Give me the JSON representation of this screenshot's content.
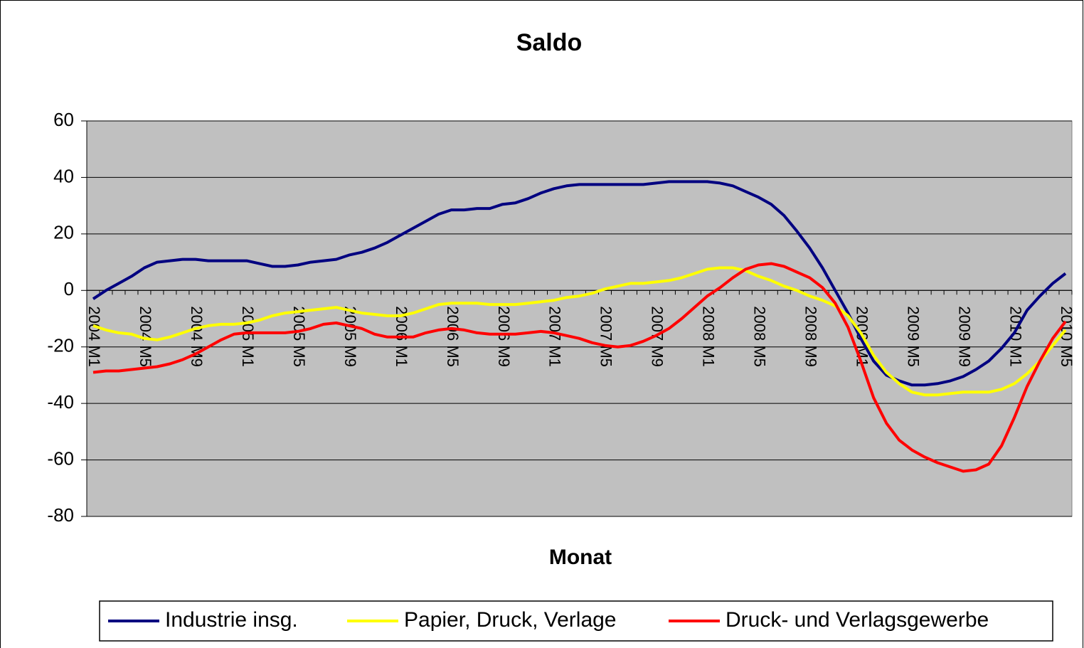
{
  "chart_data": {
    "type": "line",
    "title": "Saldo",
    "x_label": "Monat",
    "categories": [
      "2004 M1",
      null,
      null,
      null,
      "2004 M5",
      null,
      null,
      null,
      "2004 M9",
      null,
      null,
      null,
      "2005 M1",
      null,
      null,
      null,
      "2005 M5",
      null,
      null,
      null,
      "2005 M9",
      null,
      null,
      null,
      "2006 M1",
      null,
      null,
      null,
      "2006 M5",
      null,
      null,
      null,
      "2006 M9",
      null,
      null,
      null,
      "2007 M1",
      null,
      null,
      null,
      "2007 M5",
      null,
      null,
      null,
      "2007 M9",
      null,
      null,
      null,
      "2008 M1",
      null,
      null,
      null,
      "2008 M5",
      null,
      null,
      null,
      "2008 M9",
      null,
      null,
      null,
      "2009 M1",
      null,
      null,
      null,
      "2009 M5",
      null,
      null,
      null,
      "2009 M9",
      null,
      null,
      null,
      "2010 M1",
      null,
      null,
      null,
      "2010 M5"
    ],
    "series": [
      {
        "name": "Industrie insg.",
        "color": "#000080",
        "values": [
          -3,
          0,
          2.5,
          5,
          8,
          10,
          10.5,
          11,
          11,
          10.5,
          10.5,
          10.5,
          10.5,
          9.5,
          8.5,
          8.5,
          9,
          10,
          10.5,
          11,
          12.5,
          13.5,
          15,
          17,
          19.5,
          22,
          24.5,
          27,
          28.5,
          28.5,
          29,
          29,
          30.5,
          31,
          32.5,
          34.5,
          36,
          37,
          37.5,
          37.5,
          37.5,
          37.5,
          37.5,
          37.5,
          38,
          38.5,
          38.5,
          38.5,
          38.5,
          38,
          37,
          35,
          33,
          30.5,
          26.5,
          21,
          15,
          8,
          0,
          -8,
          -17,
          -25,
          -30,
          -32,
          -33.5,
          -33.5,
          -33,
          -32,
          -30.5,
          -28,
          -25,
          -20.5,
          -15,
          -7,
          -2,
          2.5,
          6
        ]
      },
      {
        "name": "Papier, Druck, Verlage",
        "color": "#ffff00",
        "values": [
          -12.5,
          -14,
          -15,
          -15.5,
          -17,
          -17.5,
          -16.5,
          -15,
          -13.5,
          -12.5,
          -12,
          -12,
          -11.5,
          -10.5,
          -9,
          -8,
          -7.5,
          -7,
          -6.5,
          -6,
          -7,
          -8,
          -8.5,
          -9,
          -9,
          -8,
          -6.5,
          -5,
          -4.5,
          -4.5,
          -4.5,
          -5,
          -5,
          -5,
          -4.5,
          -4,
          -3.5,
          -2.5,
          -2,
          -1,
          0.5,
          1.5,
          2.5,
          2.5,
          3,
          3.5,
          4.5,
          6,
          7.5,
          8,
          8,
          7,
          5,
          3.5,
          1.5,
          0,
          -2,
          -3.5,
          -5.5,
          -9,
          -15,
          -23,
          -29,
          -33,
          -36,
          -37,
          -37,
          -36.5,
          -36,
          -36,
          -36,
          -35,
          -33,
          -29.5,
          -25,
          -19.5,
          -14
        ]
      },
      {
        "name": "Druck- und Verlagsgewerbe",
        "color": "#ff0000",
        "values": [
          -29,
          -28.5,
          -28.5,
          -28,
          -27.5,
          -27,
          -26,
          -24.5,
          -22.5,
          -20,
          -17.5,
          -15.5,
          -15,
          -15,
          -15,
          -15,
          -14.5,
          -13.5,
          -12,
          -11.5,
          -12.5,
          -13.5,
          -15.5,
          -16.5,
          -16.5,
          -16.5,
          -15,
          -14,
          -13.5,
          -14,
          -15,
          -15.5,
          -15.5,
          -15.5,
          -15,
          -14.5,
          -15,
          -16,
          -17,
          -18.5,
          -19.5,
          -20,
          -19.5,
          -18,
          -16,
          -13.5,
          -10,
          -6,
          -2,
          1,
          4.5,
          7.5,
          9,
          9.5,
          8.5,
          6.5,
          4.5,
          1,
          -4.5,
          -13,
          -25,
          -38,
          -47,
          -53,
          -56.5,
          -59,
          -61,
          -62.5,
          -64,
          -63.5,
          -61.5,
          -55,
          -45,
          -34,
          -25,
          -17,
          -11
        ]
      }
    ],
    "ylim": [
      -80,
      60
    ],
    "yticks": [
      -80,
      -60,
      -40,
      -20,
      0,
      20,
      40,
      60
    ],
    "grid": true,
    "legend": "bottom"
  }
}
